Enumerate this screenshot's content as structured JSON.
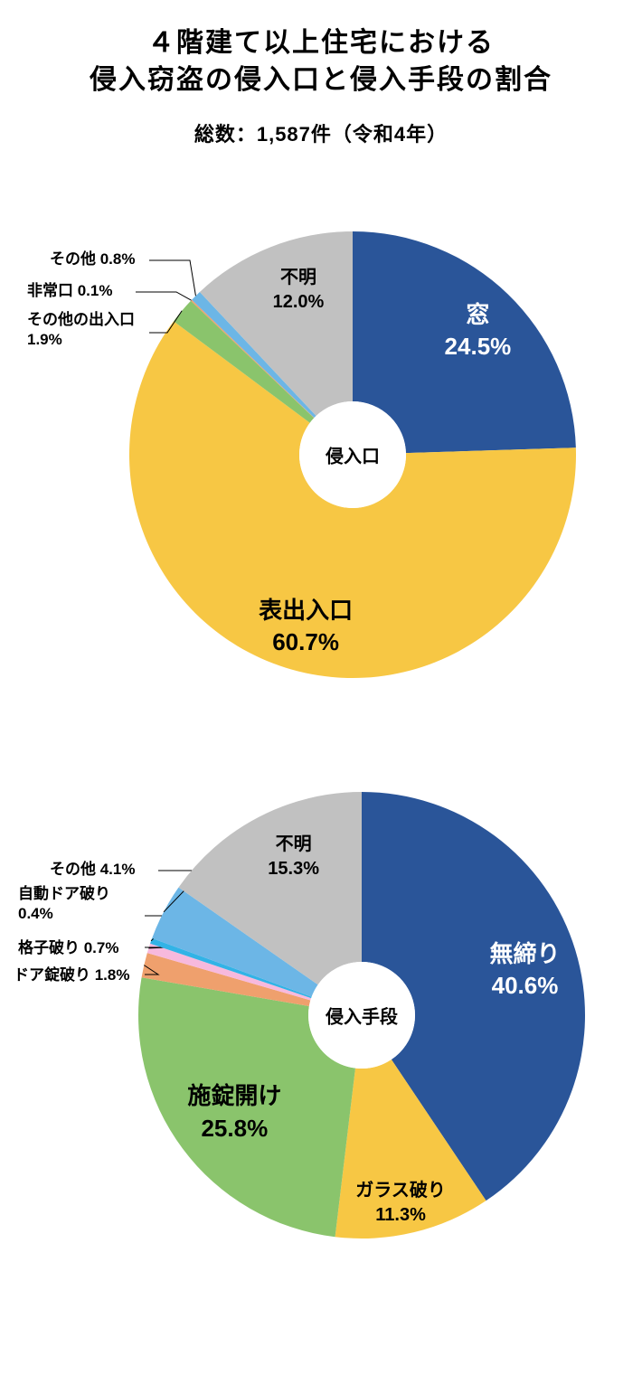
{
  "title_line1": "４階建て以上住宅における",
  "title_line2": "侵入窃盗の侵入口と侵入手段の割合",
  "subtitle": "総数：1,587件（令和4年）",
  "chart1": {
    "type": "donut",
    "center_label": "侵入口",
    "center_fontsize": 20,
    "diameter": 494,
    "inner_diameter": 118,
    "bg": "#ffffff",
    "start_angle_deg": 0,
    "slices": [
      {
        "name": "窓",
        "value": 24.5,
        "color": "#2a5599",
        "label_inside": true,
        "label_color": "#ffffff",
        "fontsize": 26
      },
      {
        "name": "表出入口",
        "value": 60.7,
        "color": "#f7c744",
        "label_inside": true,
        "label_color": "#000000",
        "fontsize": 26
      },
      {
        "name": "その他の出入口",
        "value": 1.9,
        "color": "#8ac46c",
        "label_inside": false,
        "label_color": "#000000",
        "fontsize": 17,
        "two_line": true
      },
      {
        "name": "非常口",
        "value": 0.1,
        "color": "#efa06d",
        "label_inside": false,
        "label_color": "#000000",
        "fontsize": 17
      },
      {
        "name": "その他",
        "value": 0.8,
        "color": "#6cb6e6",
        "label_inside": false,
        "label_color": "#000000",
        "fontsize": 17
      },
      {
        "name": "不明",
        "value": 12.0,
        "color": "#c1c1c1",
        "label_inside": true,
        "label_color": "#000000",
        "fontsize": 20
      }
    ]
  },
  "chart2": {
    "type": "donut",
    "center_label": "侵入手段",
    "center_fontsize": 20,
    "diameter": 494,
    "inner_diameter": 118,
    "bg": "#ffffff",
    "start_angle_deg": 0,
    "slices": [
      {
        "name": "無締り",
        "value": 40.6,
        "color": "#2a5599",
        "label_inside": true,
        "label_color": "#ffffff",
        "fontsize": 26
      },
      {
        "name": "ガラス破り",
        "value": 11.3,
        "color": "#f7c744",
        "label_inside": true,
        "label_color": "#000000",
        "fontsize": 20
      },
      {
        "name": "施錠開け",
        "value": 25.8,
        "color": "#8ac46c",
        "label_inside": true,
        "label_color": "#000000",
        "fontsize": 26
      },
      {
        "name": "ドア錠破り",
        "value": 1.8,
        "color": "#efa06d",
        "label_inside": false,
        "label_color": "#000000",
        "fontsize": 17
      },
      {
        "name": "格子破り",
        "value": 0.7,
        "color": "#f7b9dd",
        "label_inside": false,
        "label_color": "#000000",
        "fontsize": 17
      },
      {
        "name": "自動ドア破り",
        "value": 0.4,
        "color": "#32b3e6",
        "label_inside": false,
        "label_color": "#000000",
        "fontsize": 17,
        "two_line": true
      },
      {
        "name": "その他",
        "value": 4.1,
        "color": "#6cb6e6",
        "label_inside": false,
        "label_color": "#000000",
        "fontsize": 17
      },
      {
        "name": "不明",
        "value": 15.3,
        "color": "#c1c1c1",
        "label_inside": true,
        "label_color": "#000000",
        "fontsize": 20
      }
    ]
  }
}
